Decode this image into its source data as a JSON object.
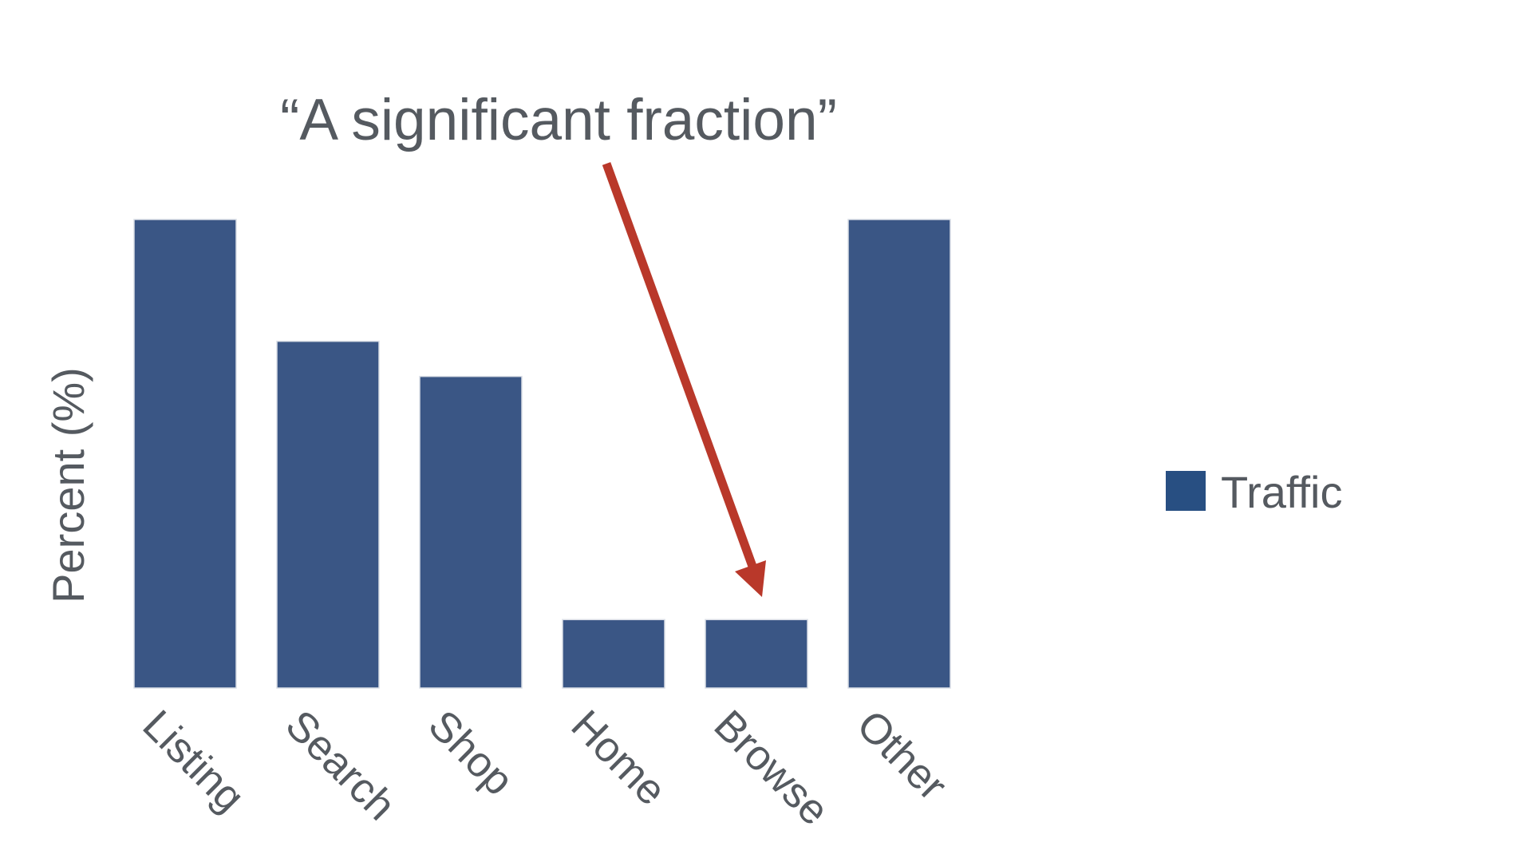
{
  "chart_data": {
    "type": "bar",
    "title": "",
    "xlabel": "",
    "ylabel": "Percent (%)",
    "categories": [
      "Listing",
      "Search",
      "Shop",
      "Home",
      "Browse",
      "Other"
    ],
    "series": [
      {
        "name": "Traffic",
        "values": [
          100,
          74,
          66.5,
          14.6,
          14.6,
          100
        ]
      }
    ],
    "ylim": [
      0,
      100
    ],
    "grid": false,
    "legend_position": "right",
    "annotation": {
      "text": "“A significant fraction”",
      "target_category": "Browse"
    }
  },
  "colors": {
    "bar": "#3a5685",
    "legend_swatch": "#284f82",
    "arrow": "#b9382a",
    "text": "#555a60"
  }
}
